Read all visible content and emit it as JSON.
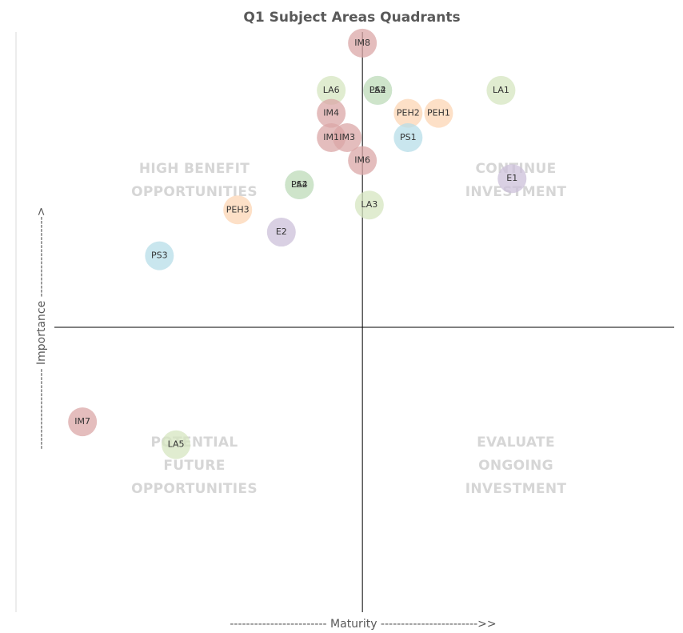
{
  "chart_data": {
    "type": "scatter",
    "title": "Q1 Subject Areas Quadrants",
    "x_label": "------------------------ Maturity ------------------------>>",
    "y_label": "-------------------- Importance -------------------->",
    "xlim": [
      -5,
      4.5
    ],
    "ylim": [
      -4.1,
      4.25
    ],
    "quadrant_labels": [
      [
        "HIGH BENEFIT",
        "OPPORTUNITIES"
      ],
      [
        "CONTINUE",
        "INVESTMENT"
      ],
      [
        "POTENTIAL",
        "FUTURE",
        "OPPORTUNITIES"
      ],
      [
        "EVALUATE",
        "ONGOING",
        "INVESTMENT"
      ]
    ],
    "points": [
      {
        "label": "IM8",
        "x": 0,
        "y": 4.09,
        "color": "#dba7a7"
      },
      {
        "label": "LA6",
        "x": -0.45,
        "y": 3.41,
        "color": "#d5e6c0"
      },
      {
        "label": "PS4",
        "x": 0.22,
        "y": 3.41,
        "color": "#9fd3dc"
      },
      {
        "label": "LA2",
        "x": 0.22,
        "y": 3.41,
        "color": "#d5e6c0"
      },
      {
        "label": "LA1",
        "x": 2.0,
        "y": 3.41,
        "color": "#d5e6c0"
      },
      {
        "label": "IM4",
        "x": -0.45,
        "y": 3.08,
        "color": "#dba7a7"
      },
      {
        "label": "PEH2",
        "x": 0.66,
        "y": 3.08,
        "color": "#fcd5b4"
      },
      {
        "label": "PEH1",
        "x": 1.1,
        "y": 3.08,
        "color": "#fcd5b4"
      },
      {
        "label": "IM1",
        "x": -0.45,
        "y": 2.73,
        "color": "#dba7a7"
      },
      {
        "label": "IM3",
        "x": -0.22,
        "y": 2.73,
        "color": "#dba7a7"
      },
      {
        "label": "PS1",
        "x": 0.66,
        "y": 2.73,
        "color": "#b7dee8"
      },
      {
        "label": "IM6",
        "x": 0,
        "y": 2.4,
        "color": "#dba7a7"
      },
      {
        "label": "E1",
        "x": 2.16,
        "y": 2.14,
        "color": "#ccc0da"
      },
      {
        "label": "PS2",
        "x": -0.91,
        "y": 2.05,
        "color": "#9fd3dc"
      },
      {
        "label": "LA4",
        "x": -0.91,
        "y": 2.05,
        "color": "#d5e6c0"
      },
      {
        "label": "LA3",
        "x": 0.1,
        "y": 1.76,
        "color": "#d5e6c0"
      },
      {
        "label": "PEH3",
        "x": -1.8,
        "y": 1.69,
        "color": "#fcd5b4"
      },
      {
        "label": "E2",
        "x": -1.17,
        "y": 1.37,
        "color": "#ccc0da"
      },
      {
        "label": "PS3",
        "x": -2.93,
        "y": 1.03,
        "color": "#b7dee8"
      },
      {
        "label": "IM7",
        "x": -4.04,
        "y": -1.36,
        "color": "#dba7a7"
      },
      {
        "label": "LA5",
        "x": -2.69,
        "y": -1.69,
        "color": "#d5e6c0"
      }
    ]
  }
}
